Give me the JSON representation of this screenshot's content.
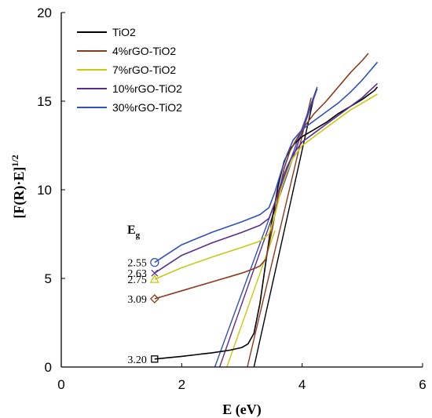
{
  "chart_data": {
    "type": "line",
    "xlabel": "E (eV)",
    "ylabel": "[F(R)·E]",
    "ylabel_sup": "1/2",
    "xlim": [
      0,
      6
    ],
    "ylim": [
      0,
      20
    ],
    "xticks": [
      0,
      2,
      4,
      6
    ],
    "yticks": [
      0,
      5,
      10,
      15,
      20
    ],
    "grid": false,
    "legend_position": "top-left",
    "series": [
      {
        "name": "TiO2",
        "color": "#000000",
        "x": [
          1.55,
          2.0,
          2.5,
          2.8,
          3.0,
          3.1,
          3.2,
          3.3,
          3.4,
          3.5,
          3.6,
          3.7,
          3.8,
          3.9,
          4.0,
          4.2,
          4.4,
          4.6,
          4.8,
          5.0,
          5.2,
          5.25
        ],
        "y": [
          0.45,
          0.6,
          0.8,
          0.95,
          1.1,
          1.3,
          1.9,
          3.6,
          6.0,
          8.3,
          10.2,
          11.6,
          12.3,
          12.7,
          13.0,
          13.4,
          13.8,
          14.3,
          14.7,
          15.1,
          15.6,
          15.8
        ],
        "eg": 3.2,
        "eg_label": "3.20",
        "marker": "square",
        "fit_x": [
          3.2,
          4.2
        ],
        "fit_y": [
          0,
          15.3
        ]
      },
      {
        "name": "4%rGO-TiO2",
        "color": "#8b3a1a",
        "x": [
          1.55,
          2.0,
          2.5,
          3.0,
          3.2,
          3.3,
          3.4,
          3.5,
          3.6,
          3.7,
          3.8,
          3.9,
          4.0,
          4.2,
          4.4,
          4.6,
          4.8,
          5.0,
          5.1
        ],
        "y": [
          3.85,
          4.3,
          4.8,
          5.3,
          5.55,
          5.7,
          6.1,
          7.7,
          9.6,
          11.2,
          12.2,
          12.8,
          13.4,
          14.3,
          15.0,
          15.8,
          16.6,
          17.3,
          17.7
        ],
        "eg": 3.09,
        "eg_label": "3.09",
        "marker": "diamond",
        "fit_x": [
          3.09,
          4.15
        ],
        "fit_y": [
          0,
          15.2
        ]
      },
      {
        "name": "7%rGO-TiO2",
        "color": "#c9c912",
        "x": [
          1.55,
          2.0,
          2.5,
          3.0,
          3.3,
          3.45,
          3.55,
          3.65,
          3.75,
          3.85,
          4.0,
          4.2,
          4.4,
          4.6,
          4.8,
          5.0,
          5.25
        ],
        "y": [
          4.95,
          5.6,
          6.2,
          6.75,
          7.1,
          7.5,
          8.6,
          10.0,
          11.0,
          11.8,
          12.5,
          13.0,
          13.5,
          14.0,
          14.5,
          14.9,
          15.4
        ],
        "eg": 2.75,
        "eg_label": "2.75",
        "marker": "triangle",
        "fit_x": [
          2.75,
          3.55
        ],
        "fit_y": [
          0,
          7.7
        ]
      },
      {
        "name": "10%rGO-TiO2",
        "color": "#5b2d8f",
        "x": [
          1.55,
          2.0,
          2.5,
          3.0,
          3.3,
          3.45,
          3.55,
          3.65,
          3.75,
          3.85,
          4.0,
          4.2,
          4.4,
          4.6,
          4.8,
          5.0,
          5.25
        ],
        "y": [
          5.3,
          6.3,
          7.0,
          7.6,
          8.0,
          8.4,
          9.3,
          10.4,
          11.3,
          12.0,
          12.7,
          13.2,
          13.7,
          14.2,
          14.7,
          15.2,
          16.0
        ],
        "eg": 2.63,
        "eg_label": "2.63",
        "marker": "x",
        "fit_x": [
          2.63,
          4.25
        ],
        "fit_y": [
          0,
          15.7
        ]
      },
      {
        "name": "30%rGO-TiO2",
        "color": "#3050c0",
        "x": [
          1.55,
          2.0,
          2.5,
          3.0,
          3.3,
          3.45,
          3.55,
          3.65,
          3.75,
          3.85,
          4.0,
          4.2,
          4.4,
          4.6,
          4.8,
          5.0,
          5.25
        ],
        "y": [
          5.9,
          6.9,
          7.6,
          8.2,
          8.6,
          9.0,
          9.9,
          11.0,
          12.0,
          12.8,
          13.4,
          13.9,
          14.4,
          14.9,
          15.5,
          16.2,
          17.2
        ],
        "eg": 2.55,
        "eg_label": "2.55",
        "marker": "circle",
        "fit_x": [
          2.55,
          4.25
        ],
        "fit_y": [
          0,
          15.8
        ]
      }
    ],
    "annotations": {
      "eg_symbol": "E",
      "eg_subscript": "g"
    }
  }
}
